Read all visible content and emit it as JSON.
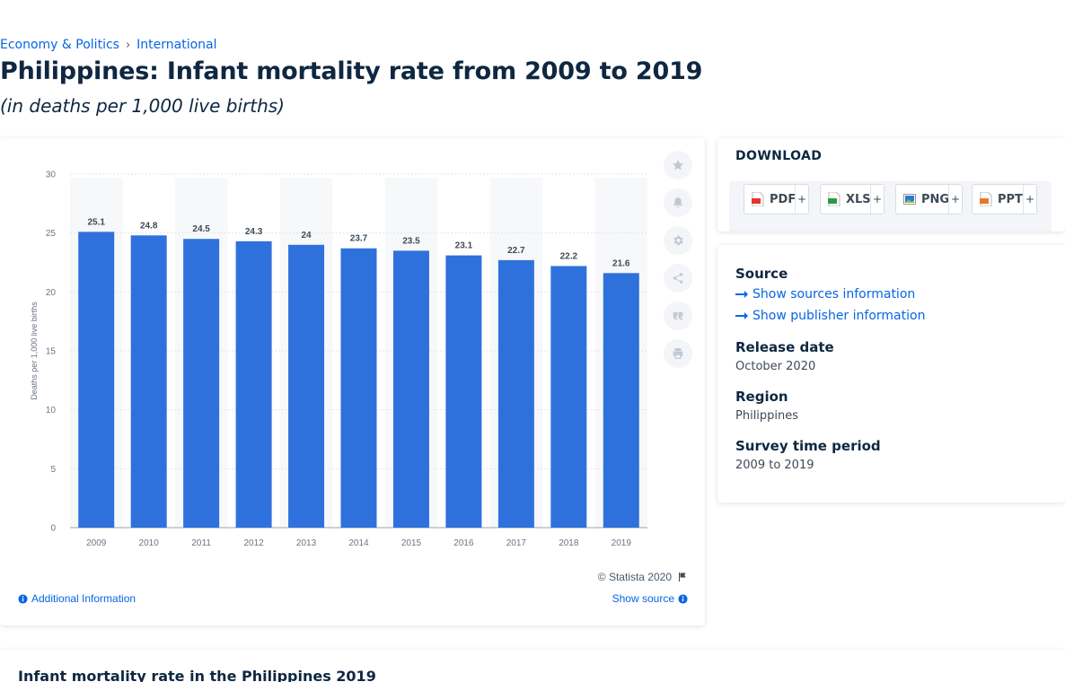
{
  "breadcrumb": {
    "category": "Economy & Politics",
    "separator": "›",
    "subcategory": "International"
  },
  "page": {
    "title": "Philippines: Infant mortality rate from 2009 to 2019",
    "subtitle": "(in deaths per 1,000 live births)"
  },
  "chart_data": {
    "type": "bar",
    "categories": [
      "2009",
      "2010",
      "2011",
      "2012",
      "2013",
      "2014",
      "2015",
      "2016",
      "2017",
      "2018",
      "2019"
    ],
    "values": [
      25.1,
      24.8,
      24.5,
      24.3,
      24,
      23.7,
      23.5,
      23.1,
      22.7,
      22.2,
      21.6
    ],
    "data_labels": [
      "25.1",
      "24.8",
      "24.5",
      "24.3",
      "24",
      "23.7",
      "23.5",
      "23.1",
      "22.7",
      "22.2",
      "21.6"
    ],
    "ylabel": "Deaths per 1,000 live births",
    "xlabel": "",
    "ylim": [
      0,
      30
    ],
    "yticks": [
      "0",
      "5",
      "10",
      "15",
      "20",
      "25",
      "30"
    ],
    "grid": true,
    "bar_color": "#2f71dc",
    "band_color": "#f7f8fa"
  },
  "chart_footer": {
    "copyright": "© Statista 2020",
    "additional_info": "Additional Information",
    "show_source": "Show source"
  },
  "toolbar": {
    "icons": [
      "star-icon",
      "bell-icon",
      "gear-icon",
      "share-icon",
      "quote-icon",
      "print-icon"
    ]
  },
  "download": {
    "title": "DOWNLOAD",
    "plus": "+",
    "buttons": [
      {
        "label": "PDF",
        "color": "#e1372b"
      },
      {
        "label": "XLS",
        "color": "#2e9b3f"
      },
      {
        "label": "PNG",
        "color": "#2a7bd5"
      },
      {
        "label": "PPT",
        "color": "#e67a28"
      }
    ]
  },
  "info": {
    "source_heading": "Source",
    "show_sources": "Show sources information",
    "show_publisher": "Show publisher information",
    "release_heading": "Release date",
    "release_value": "October 2020",
    "region_heading": "Region",
    "region_value": "Philippines",
    "period_heading": "Survey time period",
    "period_value": "2009 to 2019"
  },
  "bottom": {
    "title": "Infant mortality rate in the Philippines 2019"
  },
  "colors": {
    "link": "#0666e5",
    "text": "#0f2741"
  }
}
